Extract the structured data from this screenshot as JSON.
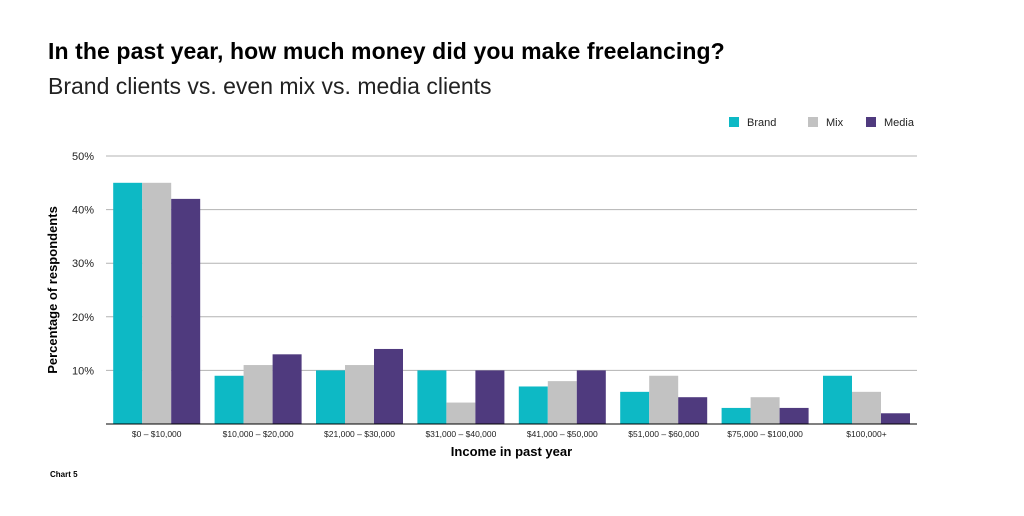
{
  "header": {
    "title": "In the past year, how much money did you make freelancing?",
    "subtitle": "Brand clients vs. even mix vs. media clients"
  },
  "footer": {
    "chart_label": "Chart 5"
  },
  "chart_data": {
    "type": "bar",
    "title": "In the past year, how much money did you make freelancing?",
    "subtitle": "Brand clients vs. even mix vs. media clients",
    "xlabel": "Income in past year",
    "ylabel": "Percentage of respondents",
    "ylim": [
      0,
      50
    ],
    "yticks": [
      10,
      20,
      30,
      40,
      50
    ],
    "ytick_labels": [
      "10%",
      "20%",
      "30%",
      "40%",
      "50%"
    ],
    "grid": true,
    "legend_position": "top-right",
    "categories": [
      "$0 – $10,000",
      "$10,000 – $20,000",
      "$21,000 – $30,000",
      "$31,000 – $40,000",
      "$41,000 – $50,000",
      "$51,000 – $60,000",
      "$75,000 – $100,000",
      "$100,000+"
    ],
    "series": [
      {
        "name": "Brand",
        "color": "#0db9c5",
        "values": [
          45,
          9,
          10,
          10,
          7,
          6,
          3,
          9
        ]
      },
      {
        "name": "Mix",
        "color": "#c2c2c2",
        "values": [
          45,
          11,
          11,
          4,
          8,
          9,
          5,
          6
        ]
      },
      {
        "name": "Media",
        "color": "#4f3a7e",
        "values": [
          42,
          13,
          14,
          10,
          10,
          5,
          3,
          2
        ]
      }
    ]
  }
}
